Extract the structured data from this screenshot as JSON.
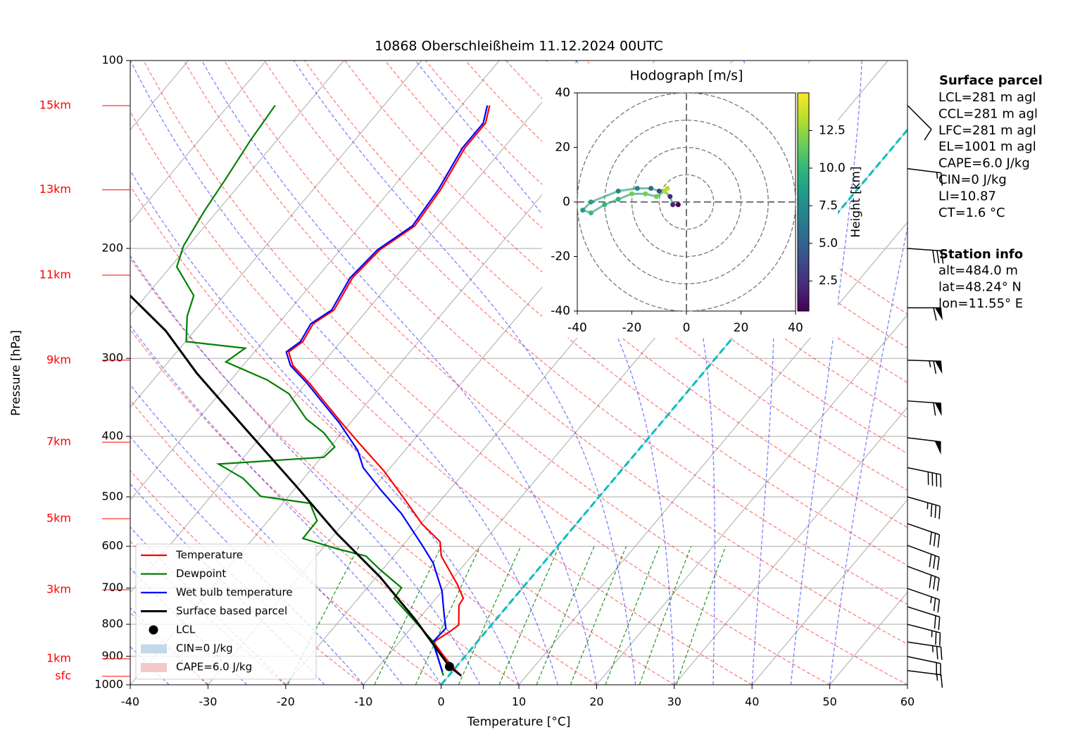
{
  "chart_data": {
    "type": "skewt",
    "title": "10868 Oberschleißheim 11.12.2024 00UTC",
    "xlabel": "Temperature [°C]",
    "ylabel": "Pressure [hPa]",
    "xlim": [
      -40,
      60
    ],
    "xticks": [
      -40,
      -30,
      -20,
      -10,
      0,
      10,
      20,
      30,
      40,
      50,
      60
    ],
    "ylim": [
      1000,
      100
    ],
    "yticks": [
      1000,
      900,
      800,
      700,
      600,
      500,
      400,
      300,
      200,
      100
    ],
    "log_y": true,
    "grid": true,
    "legend": "lower left",
    "highlight_isotherm": 0,
    "highlight_color": "#00bfbf",
    "series": [
      {
        "name": "Temperature",
        "color": "#ff0000",
        "pressure": [
          967,
          942,
          894,
          854,
          821,
          802,
          746,
          727,
          690,
          622,
          590,
          553,
          505,
          455,
          410,
          380,
          351,
          329,
          308,
          293,
          282,
          264,
          251,
          223,
          201,
          184,
          161,
          138,
          126,
          118
        ],
        "values": [
          1.6,
          -0.1,
          -3.1,
          -5.6,
          -4.6,
          -4.2,
          -6.3,
          -6.5,
          -8.8,
          -13.9,
          -15.6,
          -19.8,
          -24.7,
          -30.4,
          -36.7,
          -41.2,
          -45.8,
          -49.5,
          -53.6,
          -55.6,
          -54.9,
          -55.5,
          -54.3,
          -55.4,
          -54.9,
          -53.0,
          -53.6,
          -55.0,
          -55.0,
          -56.4
        ]
      },
      {
        "name": "Dewpoint",
        "color": "#008000",
        "pressure": [
          967,
          854,
          727,
          699,
          655,
          622,
          606,
          583,
          546,
          512,
          499,
          467,
          443,
          432,
          416,
          395,
          375,
          342,
          325,
          304,
          289,
          282,
          257,
          238,
          214,
          198,
          174,
          155,
          134,
          118
        ],
        "values": [
          -0.7,
          -5.6,
          -15.4,
          -15.6,
          -20.2,
          -23.6,
          -28.0,
          -33.6,
          -33.7,
          -36.5,
          -43.6,
          -47.8,
          -52.5,
          -39.7,
          -39.4,
          -42.3,
          -46.1,
          -51.0,
          -55.3,
          -62.6,
          -61.6,
          -69.9,
          -72.5,
          -73.9,
          -79.2,
          -80.6,
          -81.7,
          -82.4,
          -83.4,
          -84.0
        ]
      },
      {
        "name": "Wet bulb temperature",
        "color": "#0000ff",
        "pressure": [
          954,
          854,
          812,
          765,
          708,
          638,
          598,
          532,
          486,
          449,
          421,
          380,
          351,
          329,
          308,
          293,
          282,
          264,
          251,
          223,
          201,
          184,
          161,
          138,
          126,
          118
        ],
        "values": [
          -1.2,
          -5.7,
          -5.5,
          -7.5,
          -10.0,
          -14.2,
          -17.5,
          -23.6,
          -29.0,
          -33.5,
          -36.1,
          -41.5,
          -46.1,
          -49.8,
          -53.9,
          -55.9,
          -55.2,
          -55.8,
          -54.6,
          -55.7,
          -55.2,
          -53.3,
          -53.9,
          -55.3,
          -55.3,
          -56.7
        ]
      },
      {
        "name": "Surface based parcel",
        "color": "#000000",
        "pressure": [
          967,
          935,
          786,
          672,
          575,
          480,
          390,
          317,
          271,
          238
        ],
        "values": [
          1.6,
          -0.9,
          -10.4,
          -19.5,
          -29.5,
          -40.2,
          -52.7,
          -65.1,
          -73.7,
          -82.1
        ]
      }
    ],
    "lcl": {
      "name": "LCL",
      "pressure": 935,
      "values": -0.9,
      "color": "#000000"
    },
    "shading": [
      {
        "name": "CIN=0 J/kg",
        "color": "#c3d8ea"
      },
      {
        "name": "CAPE=6.0 J/kg",
        "color": "#f4c7ca"
      }
    ],
    "height_labels": [
      {
        "label": "15km",
        "pressure": 118.1
      },
      {
        "label": "13km",
        "pressure": 161.1
      },
      {
        "label": "11km",
        "pressure": 220.7
      },
      {
        "label": "9km",
        "pressure": 302
      },
      {
        "label": "7km",
        "pressure": 408.6
      },
      {
        "label": "5km",
        "pressure": 542
      },
      {
        "label": "3km",
        "pressure": 704.4
      },
      {
        "label": "1km",
        "pressure": 908.5
      },
      {
        "label": "sfc",
        "pressure": 969.3
      }
    ],
    "height_color": "#ff0000",
    "wind": {
      "pressure": [
        118,
        149,
        200,
        249,
        302,
        351,
        402,
        449,
        500,
        552,
        598,
        646,
        701,
        750,
        800,
        854,
        901,
        949
      ],
      "u": [
        -6,
        -16,
        -29,
        -58,
        -64,
        -58,
        -49,
        -39,
        -35,
        -29,
        -27,
        -27,
        -23,
        -19,
        -23,
        -27,
        -19,
        -16
      ],
      "v": [
        6,
        2,
        2,
        0,
        2,
        4,
        6,
        8,
        10,
        10,
        10,
        10,
        8,
        6,
        6,
        4,
        4,
        2
      ]
    },
    "hodograph": {
      "title": "Hodograph [m/s]",
      "xlim": [
        -40,
        40
      ],
      "ylim": [
        -40,
        40
      ],
      "xticks": [
        -40,
        -20,
        0,
        20,
        40
      ],
      "yticks": [
        -40,
        -20,
        0,
        20,
        40
      ],
      "rings": [
        10,
        20,
        30,
        40
      ],
      "u": [
        -3,
        -5,
        -6,
        -8,
        -10,
        -13,
        -18,
        -25,
        -35,
        -38,
        -35,
        -30,
        -25,
        -20,
        -15,
        -11,
        -8,
        -7
      ],
      "v": [
        -1,
        -1,
        2,
        4,
        4,
        5,
        5,
        4,
        0,
        -3,
        -4,
        -1,
        1,
        3,
        3,
        2,
        4,
        5
      ],
      "height": [
        0.5,
        1.5,
        2.5,
        3.5,
        4.5,
        5.5,
        6.5,
        7.5,
        8.5,
        9,
        9.5,
        10,
        10.5,
        11,
        11.5,
        12,
        13,
        14
      ],
      "colormap": "viridis",
      "colorbar_label": "Height [km]",
      "clim": [
        0.5,
        15
      ],
      "cticks": [
        2.5,
        {
          "value": 5,
          "label": "5.0"
        },
        7.5,
        {
          "value": 10,
          "label": "10.0"
        },
        12.5
      ]
    },
    "info": {
      "surface_title": "Surface parcel",
      "surface_lines": [
        "LCL=281 m agl",
        "CCL=281 m agl",
        "LFC=281 m agl",
        "EL=1001 m agl",
        "CAPE=6.0 J/kg",
        "CIN=0 J/kg",
        "LI=10.87",
        "CT=1.6 °C"
      ],
      "station_title": "Station info",
      "station_lines": [
        "alt=484.0 m",
        "lat=48.24° N",
        "lon=11.55° E"
      ]
    }
  }
}
